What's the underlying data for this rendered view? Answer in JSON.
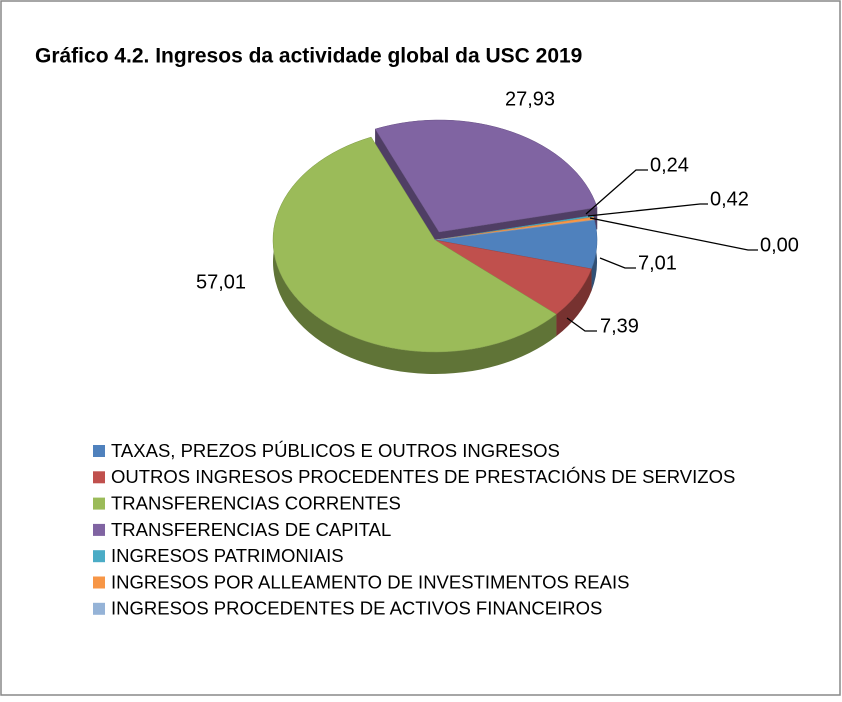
{
  "chart_data": {
    "type": "pie",
    "title": "Gráfico 4.2. Ingresos da actividade global da USC 2019",
    "categories": [
      "TAXAS, PREZOS PÚBLICOS E OUTROS INGRESOS",
      "OUTROS INGRESOS PROCEDENTES DE PRESTACIÓNS DE SERVIZOS",
      "TRANSFERENCIAS CORRENTES",
      "TRANSFERENCIAS DE CAPITAL",
      "INGRESOS PATRIMONIAIS",
      "INGRESOS POR ALLEAMENTO DE INVESTIMENTOS REAIS",
      "INGRESOS PROCEDENTES DE ACTIVOS FINANCEIROS"
    ],
    "values": [
      7.01,
      7.39,
      57.01,
      27.93,
      0.24,
      0.42,
      0.0
    ],
    "value_labels": [
      "7,01",
      "7,39",
      "57,01",
      "27,93",
      "0,24",
      "0,42",
      "0,00"
    ],
    "colors": [
      "#4f81bd",
      "#c0504d",
      "#9bbb59",
      "#8064a2",
      "#4bacc6",
      "#f79646",
      "#95b3d7"
    ],
    "legend": "bottom"
  }
}
